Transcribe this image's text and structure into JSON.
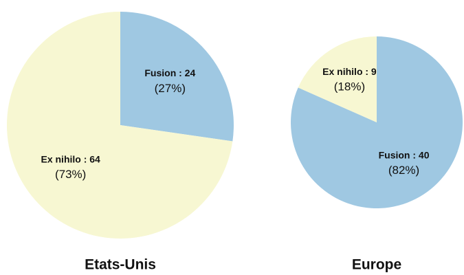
{
  "chart_data": [
    {
      "type": "pie",
      "title": "Etats-Unis",
      "values": [
        24,
        64
      ],
      "value_labels": [
        "Fusion : 24",
        "Ex nihilo : 64"
      ],
      "percent_labels": [
        "(27%)",
        "(73%)"
      ],
      "colors": [
        "#9fc8e2",
        "#f7f7d2"
      ]
    },
    {
      "type": "pie",
      "title": "Europe",
      "values": [
        40,
        9
      ],
      "value_labels": [
        "Fusion : 40",
        "Ex nihilo : 9"
      ],
      "percent_labels": [
        "(82%)",
        "(18%)"
      ],
      "colors": [
        "#9fc8e2",
        "#f7f7d2"
      ]
    }
  ]
}
